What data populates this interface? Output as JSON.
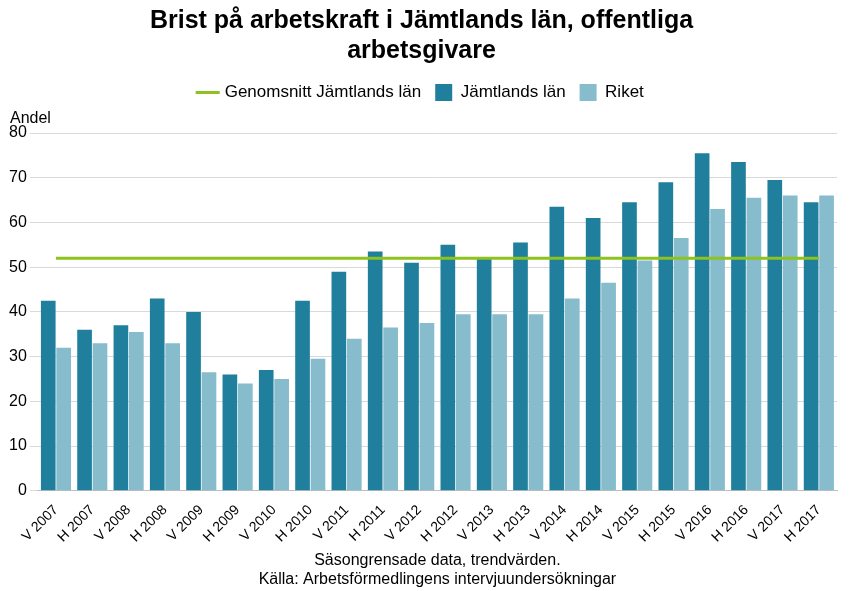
{
  "chart_data": {
    "type": "bar",
    "title": [
      "Brist på arbetskraft i Jämtlands län, offentliga",
      "arbetsgivare"
    ],
    "y_label": "Andel",
    "x_label": [
      "Säsongrensade data, trendvärden.",
      "Källa: Arbetsförmedlingens intervjuundersökningar"
    ],
    "categories": [
      "V 2007",
      "H 2007",
      "V 2008",
      "H 2008",
      "V 2009",
      "H 2009",
      "V 2010",
      "H 2010",
      "V 2011",
      "H 2011",
      "V 2012",
      "H 2012",
      "V 2013",
      "H 2013",
      "V 2014",
      "H 2014",
      "V 2015",
      "H 2015",
      "V 2016",
      "H 2016",
      "V 2017",
      "H 2017"
    ],
    "series": [
      {
        "name": "Jämtlands län",
        "color": "#1f7f9c",
        "values": [
          42.5,
          36,
          37,
          43,
          40,
          26,
          27,
          42.5,
          49,
          53.5,
          51,
          55,
          52,
          55.5,
          63.5,
          61,
          64.5,
          69,
          75.5,
          73.5,
          69.5,
          64.5
        ]
      },
      {
        "name": "Riket",
        "color": "#86bccb",
        "values": [
          32,
          33,
          35.5,
          33,
          26.5,
          24,
          25,
          29.5,
          34,
          36.5,
          37.5,
          39.5,
          39.5,
          39.5,
          43,
          46.5,
          51.5,
          56.5,
          63,
          65.5,
          66,
          66
        ]
      },
      {
        "name": "Genomsnitt Jämtlands län",
        "color": "#8dc21f",
        "type": "line",
        "values": [
          52,
          52,
          52,
          52,
          52,
          52,
          52,
          52,
          52,
          52,
          52,
          52,
          52,
          52,
          52,
          52,
          52,
          52,
          52,
          52,
          52,
          52
        ]
      }
    ],
    "ylim": [
      0,
      80
    ],
    "yticks": [
      0,
      10,
      20,
      30,
      40,
      50,
      60,
      70,
      80
    ],
    "grid": true,
    "legend": "top"
  }
}
